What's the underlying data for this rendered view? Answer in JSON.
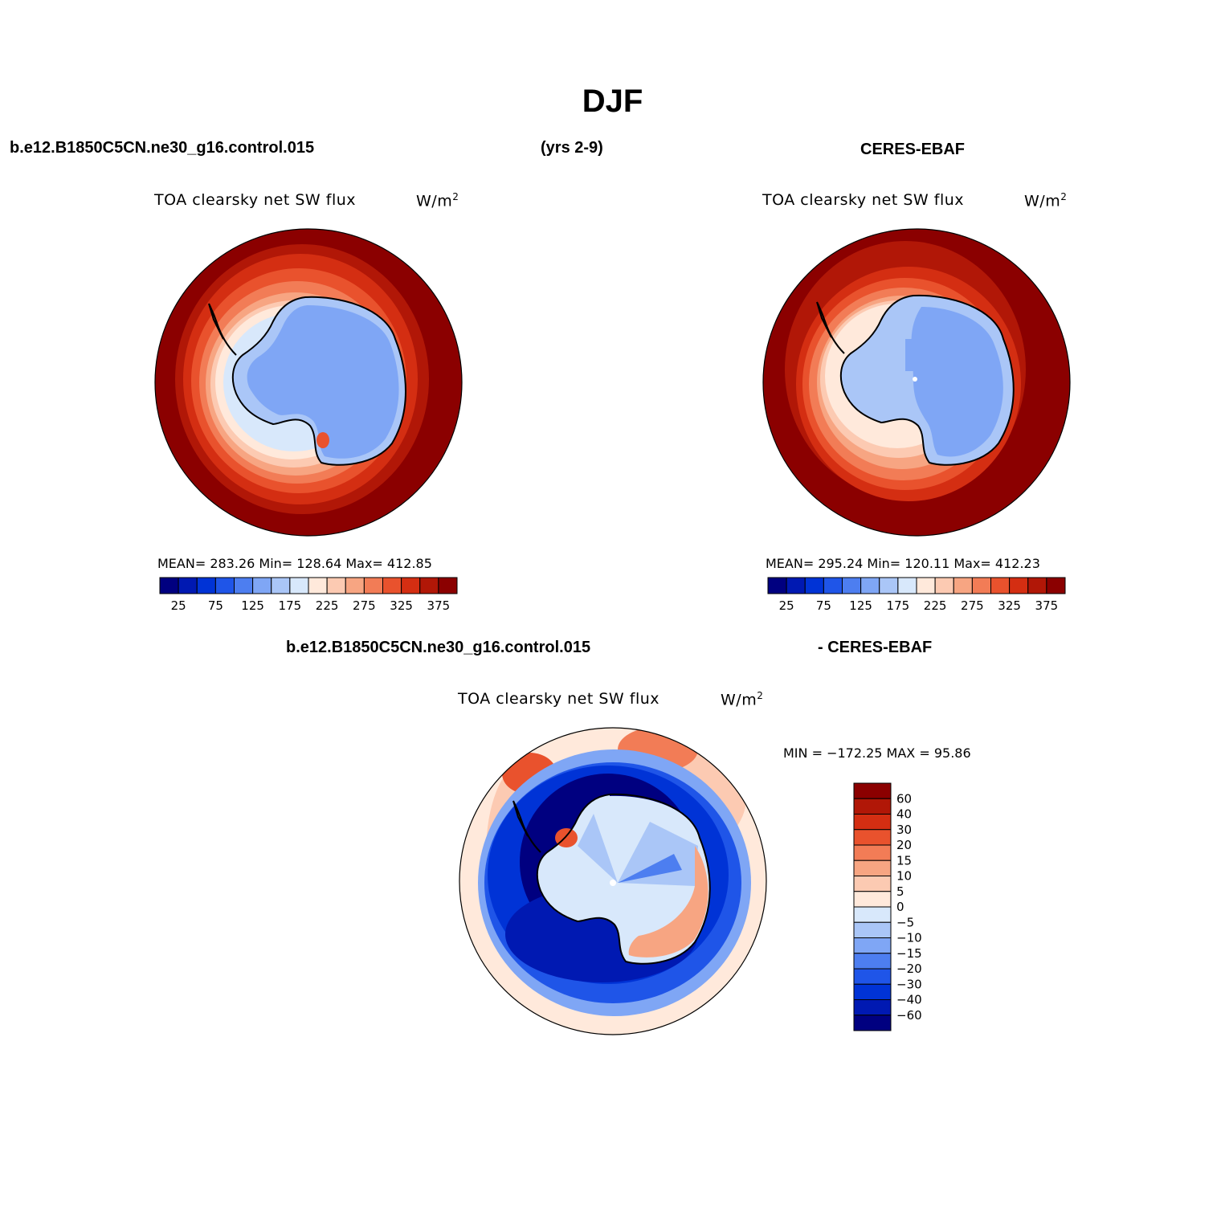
{
  "figure": {
    "season": "DJF",
    "case_name": "b.e12.B1850C5CN.ne30_g16.control.015",
    "years": "(yrs 2-9)",
    "obs_name": "CERES-EBAF"
  },
  "panels": {
    "model": {
      "variable": "TOA clearsky net SW flux",
      "units_base": "W/m",
      "units_exp": "2",
      "stats": "MEAN= 283.26   Min= 128.64   Max= 412.85"
    },
    "obs": {
      "variable": "TOA clearsky net SW flux",
      "units_base": "W/m",
      "units_exp": "2",
      "stats": "MEAN= 295.24   Min= 120.11   Max= 412.23"
    },
    "diff": {
      "case_name": "b.e12.B1850C5CN.ne30_g16.control.015",
      "obs_label": "- CERES-EBAF",
      "variable": "TOA clearsky net SW flux",
      "units_base": "W/m",
      "units_exp": "2",
      "minmax": "MIN = −172.25 MAX =   95.86"
    }
  },
  "colorbars": {
    "abs": {
      "colors": [
        "#000080",
        "#0019b2",
        "#0033d6",
        "#1f55e8",
        "#4d7ef0",
        "#7fa6f5",
        "#aac6f7",
        "#d8e8fb",
        "#ffe9db",
        "#fccab2",
        "#f7a582",
        "#f27c56",
        "#e9522d",
        "#d42e12",
        "#b11707",
        "#8b0000"
      ],
      "labels": [
        "25",
        "75",
        "125",
        "175",
        "225",
        "275",
        "325",
        "375"
      ]
    },
    "diff": {
      "colors": [
        "#8b0000",
        "#b11707",
        "#d42e12",
        "#e9522d",
        "#f27c56",
        "#f7a582",
        "#fccab2",
        "#ffe9db",
        "#d8e8fb",
        "#aac6f7",
        "#7fa6f5",
        "#4d7ef0",
        "#1f55e8",
        "#0033d6",
        "#0019b2",
        "#000080"
      ],
      "labels": [
        "60",
        "40",
        "30",
        "20",
        "15",
        "10",
        "5",
        "0",
        "−5",
        "−10",
        "−15",
        "−20",
        "−30",
        "−40",
        "−60"
      ]
    }
  }
}
